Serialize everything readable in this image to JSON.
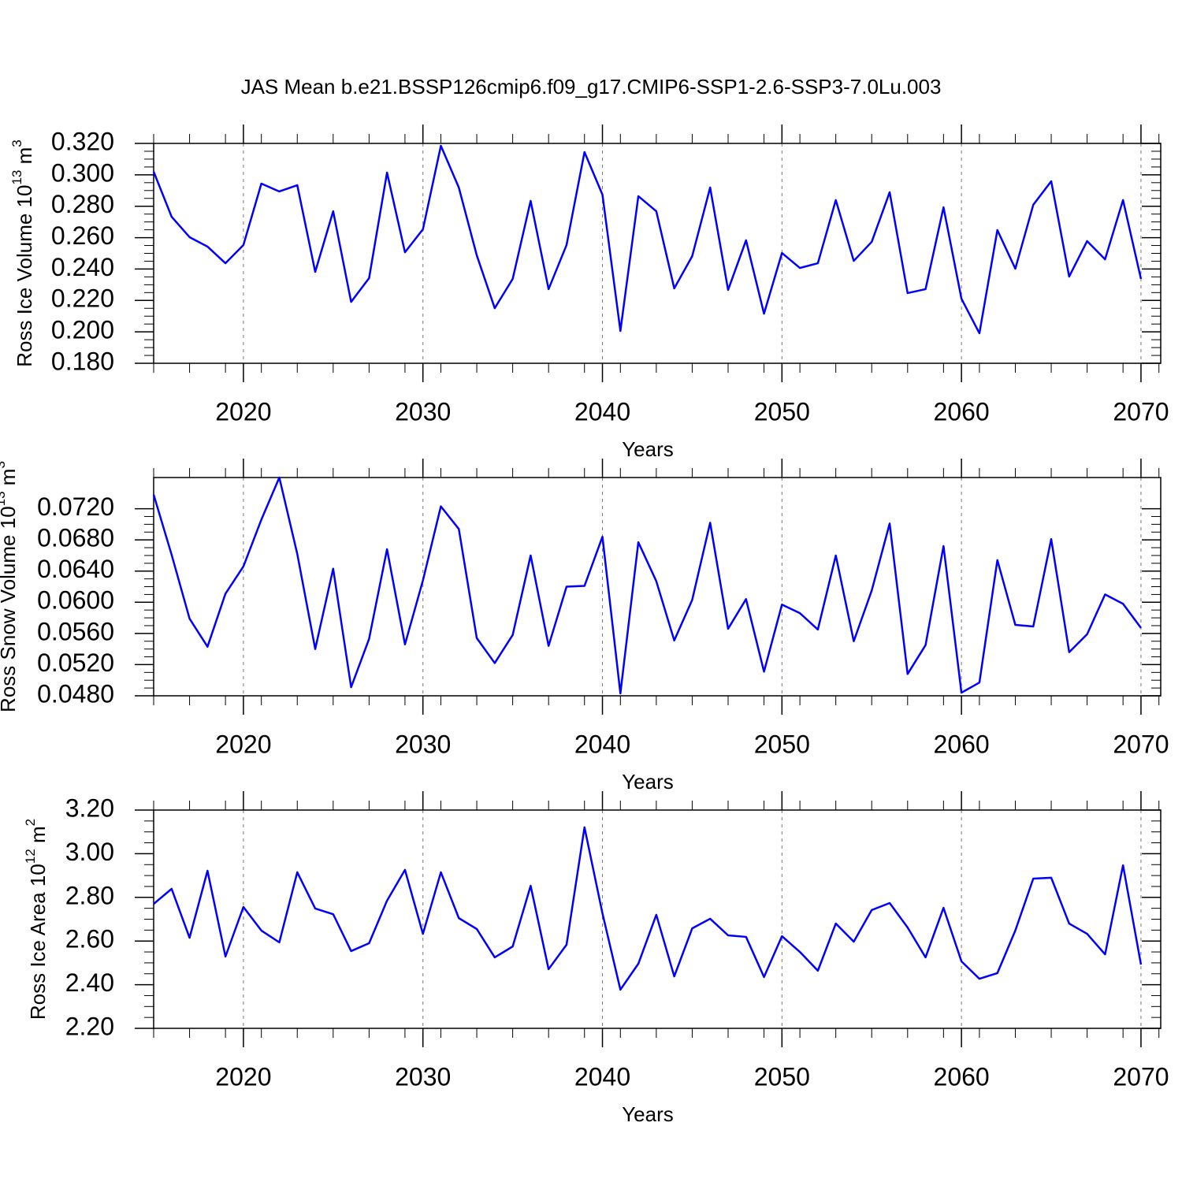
{
  "chart_data": [
    {
      "type": "line",
      "title": "JAS Mean b.e21.BSSP126cmip6.f09_g17.CMIP6-SSP1-2.6-SSP3-7.0Lu.003",
      "ylabel": [
        "Ross Ice Volume 10",
        "13",
        " m",
        "3"
      ],
      "xlabel": "Years",
      "x": [
        2015,
        2016,
        2017,
        2018,
        2019,
        2020,
        2021,
        2022,
        2023,
        2024,
        2025,
        2026,
        2027,
        2028,
        2029,
        2030,
        2031,
        2032,
        2033,
        2034,
        2035,
        2036,
        2037,
        2038,
        2039,
        2040,
        2041,
        2042,
        2043,
        2044,
        2045,
        2046,
        2047,
        2048,
        2049,
        2050,
        2051,
        2052,
        2053,
        2054,
        2055,
        2056,
        2057,
        2058,
        2059,
        2060,
        2061,
        2062,
        2063,
        2064,
        2065,
        2066,
        2067,
        2068,
        2069,
        2070
      ],
      "values": [
        0.302,
        0.2733,
        0.2603,
        0.2543,
        0.2437,
        0.2553,
        0.2944,
        0.2894,
        0.2934,
        0.2382,
        0.2768,
        0.2191,
        0.2342,
        0.3014,
        0.2507,
        0.2653,
        0.3185,
        0.2919,
        0.2487,
        0.2151,
        0.2337,
        0.2834,
        0.2272,
        0.2553,
        0.3145,
        0.2874,
        0.2006,
        0.2864,
        0.2768,
        0.2277,
        0.2482,
        0.2919,
        0.2267,
        0.2583,
        0.2116,
        0.2502,
        0.2407,
        0.2437,
        0.2839,
        0.2452,
        0.2573,
        0.2889,
        0.2247,
        0.2272,
        0.2793,
        0.2211,
        0.1991,
        0.2648,
        0.2402,
        0.2809,
        0.2959,
        0.2352,
        0.2578,
        0.2462,
        0.2839,
        0.2337
      ],
      "color": "#0000ff",
      "xlim": [
        2015,
        2071.1
      ],
      "xticks": [
        2020,
        2030,
        2040,
        2050,
        2060,
        2070
      ],
      "ylim": [
        0.18,
        0.32
      ],
      "yticks": [
        {
          "value": 0.18,
          "label": "0.180"
        },
        {
          "value": 0.2,
          "label": "0.200"
        },
        {
          "value": 0.22,
          "label": "0.220"
        },
        {
          "value": 0.24,
          "label": "0.240"
        },
        {
          "value": 0.26,
          "label": "0.260"
        },
        {
          "value": 0.28,
          "label": "0.280"
        },
        {
          "value": 0.3,
          "label": "0.300"
        },
        {
          "value": 0.32,
          "label": "0.320"
        }
      ],
      "grid": true
    },
    {
      "type": "line",
      "ylabel": [
        "Ross Snow Volume 10",
        "13",
        " m",
        "3"
      ],
      "xlabel": "Years",
      "x": [
        2015,
        2016,
        2017,
        2018,
        2019,
        2020,
        2021,
        2022,
        2023,
        2024,
        2025,
        2026,
        2027,
        2028,
        2029,
        2030,
        2031,
        2032,
        2033,
        2034,
        2035,
        2036,
        2037,
        2038,
        2039,
        2040,
        2041,
        2042,
        2043,
        2044,
        2045,
        2046,
        2047,
        2048,
        2049,
        2050,
        2051,
        2052,
        2053,
        2054,
        2055,
        2056,
        2057,
        2058,
        2059,
        2060,
        2061,
        2062,
        2063,
        2064,
        2065,
        2066,
        2067,
        2068,
        2069,
        2070
      ],
      "values": [
        0.0738,
        0.0661,
        0.0579,
        0.0543,
        0.0611,
        0.0646,
        0.0706,
        0.076,
        0.0662,
        0.054,
        0.0643,
        0.0491,
        0.0553,
        0.0668,
        0.0546,
        0.0628,
        0.0723,
        0.0694,
        0.0554,
        0.0522,
        0.0558,
        0.066,
        0.0544,
        0.062,
        0.0621,
        0.0684,
        0.0483,
        0.0677,
        0.0627,
        0.0551,
        0.0603,
        0.0702,
        0.0566,
        0.0604,
        0.0511,
        0.0597,
        0.0586,
        0.0565,
        0.066,
        0.055,
        0.0615,
        0.0701,
        0.0508,
        0.0545,
        0.0672,
        0.0484,
        0.0497,
        0.0654,
        0.0571,
        0.0569,
        0.0681,
        0.0536,
        0.0559,
        0.061,
        0.0598,
        0.0567
      ],
      "color": "#0000ff",
      "xlim": [
        2015,
        2071.1
      ],
      "xticks": [
        2020,
        2030,
        2040,
        2050,
        2060,
        2070
      ],
      "ylim": [
        0.048,
        0.076
      ],
      "yticks": [
        {
          "value": 0.048,
          "label": "0.0480"
        },
        {
          "value": 0.052,
          "label": "0.0520"
        },
        {
          "value": 0.056,
          "label": "0.0560"
        },
        {
          "value": 0.06,
          "label": "0.0600"
        },
        {
          "value": 0.064,
          "label": "0.0640"
        },
        {
          "value": 0.068,
          "label": "0.0680"
        },
        {
          "value": 0.072,
          "label": "0.0720"
        }
      ],
      "grid": true
    },
    {
      "type": "line",
      "ylabel": [
        "Ross Ice Area 10",
        "12",
        " m",
        "2"
      ],
      "xlabel": "Years",
      "x": [
        2015,
        2016,
        2017,
        2018,
        2019,
        2020,
        2021,
        2022,
        2023,
        2024,
        2025,
        2026,
        2027,
        2028,
        2029,
        2030,
        2031,
        2032,
        2033,
        2034,
        2035,
        2036,
        2037,
        2038,
        2039,
        2040,
        2041,
        2042,
        2043,
        2044,
        2045,
        2046,
        2047,
        2048,
        2049,
        2050,
        2051,
        2052,
        2053,
        2054,
        2055,
        2056,
        2057,
        2058,
        2059,
        2060,
        2061,
        2062,
        2063,
        2064,
        2065,
        2066,
        2067,
        2068,
        2069,
        2070
      ],
      "values": [
        2.77,
        2.839,
        2.615,
        2.922,
        2.529,
        2.756,
        2.648,
        2.594,
        2.915,
        2.749,
        2.723,
        2.554,
        2.59,
        2.785,
        2.926,
        2.633,
        2.915,
        2.705,
        2.655,
        2.525,
        2.575,
        2.853,
        2.471,
        2.583,
        3.121,
        2.727,
        2.377,
        2.496,
        2.72,
        2.438,
        2.658,
        2.702,
        2.626,
        2.619,
        2.435,
        2.622,
        2.55,
        2.464,
        2.68,
        2.597,
        2.742,
        2.774,
        2.662,
        2.525,
        2.752,
        2.507,
        2.427,
        2.453,
        2.648,
        2.886,
        2.89,
        2.68,
        2.633,
        2.539,
        2.947,
        2.492
      ],
      "color": "#0000ff",
      "xlim": [
        2015,
        2071.1
      ],
      "xticks": [
        2020,
        2030,
        2040,
        2050,
        2060,
        2070
      ],
      "ylim": [
        2.2,
        3.2
      ],
      "yticks": [
        {
          "value": 2.2,
          "label": "2.20"
        },
        {
          "value": 2.4,
          "label": "2.40"
        },
        {
          "value": 2.6,
          "label": "2.60"
        },
        {
          "value": 2.8,
          "label": "2.80"
        },
        {
          "value": 3.0,
          "label": "3.00"
        },
        {
          "value": 3.2,
          "label": "3.20"
        }
      ],
      "grid": true
    }
  ]
}
